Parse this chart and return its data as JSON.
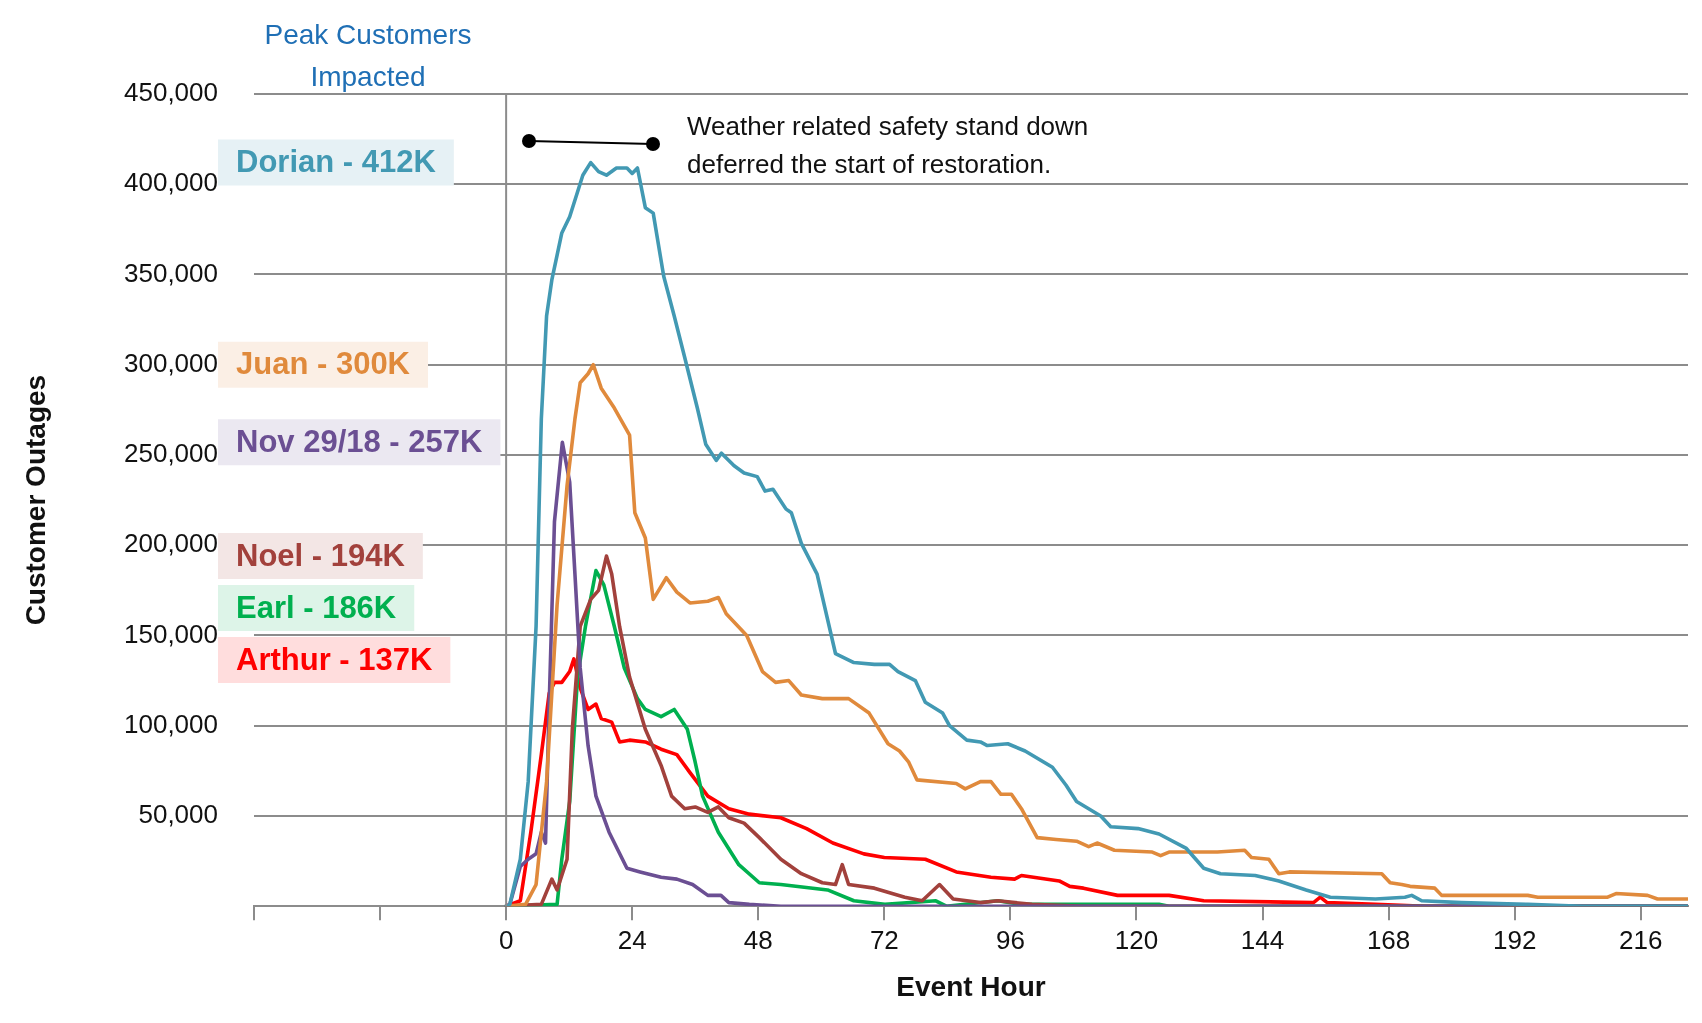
{
  "chart_data": {
    "type": "line",
    "xlabel": "Event Hour",
    "ylabel": "Customer Outages",
    "legend_title": "Peak Customers Impacted",
    "legend": "left",
    "grid": "y",
    "xlim": [
      -48,
      225
    ],
    "xticks": [
      {
        "value": -48,
        "label": null
      },
      {
        "value": -24,
        "label": null
      },
      0,
      24,
      48,
      72,
      96,
      120,
      144,
      168,
      192,
      216
    ],
    "ylim": [
      0,
      450000
    ],
    "yticks": [
      {
        "value": 0,
        "label": null
      },
      {
        "value": 50000,
        "label": "50,000"
      },
      {
        "value": 100000,
        "label": "100,000"
      },
      {
        "value": 150000,
        "label": "150,000"
      },
      {
        "value": 200000,
        "label": "200,000"
      },
      {
        "value": 250000,
        "label": "250,000"
      },
      {
        "value": 300000,
        "label": "300,000"
      },
      {
        "value": 350000,
        "label": "350,000"
      },
      {
        "value": 400000,
        "label": "400,000"
      },
      {
        "value": 450000,
        "label": "450,000"
      }
    ],
    "ref_lines": [
      {
        "axis": "x",
        "value": 0,
        "color": "#8c8c8c"
      }
    ],
    "annotations": [
      "Weather related safety stand down deferred the start of restoration."
    ],
    "series": [
      {
        "name": "Dorian - 412K",
        "color": "#4299b3",
        "x": [
          0,
          0.7,
          2.7,
          4.2,
          5.7,
          6.7,
          7.7,
          8.7,
          10.6,
          12.1,
          14.6,
          16.1,
          17.6,
          19.1,
          21,
          23,
          24,
          25,
          26.5,
          28,
          30,
          32,
          34,
          36.4,
          38,
          40,
          41,
          43.4,
          45.3,
          47.8,
          49.3,
          50.8,
          53.3,
          54.3,
          56.2,
          59.2,
          62.7,
          66.2,
          70.1,
          73,
          74.6,
          77.9,
          79.8,
          83.1,
          84.4,
          87.7,
          90.3,
          91.6,
          95.5,
          98.8,
          104,
          106.6,
          108.6,
          113.2,
          115.1,
          120.3,
          124.3,
          129.5,
          132.8,
          136,
          142.6,
          147.1,
          152.3,
          156.9,
          165.5,
          171.1,
          172.4,
          174.3,
          181.9,
          194.5,
          205,
          225
        ],
        "values": [
          0,
          1000,
          26000,
          69000,
          155000,
          270000,
          327000,
          347000,
          373000,
          382000,
          405000,
          412000,
          407000,
          405000,
          409000,
          409000,
          406000,
          409000,
          387000,
          384000,
          349000,
          327000,
          304000,
          276000,
          256000,
          247000,
          251000,
          244000,
          240000,
          238000,
          230000,
          231000,
          220000,
          218000,
          201000,
          184000,
          140000,
          135000,
          134000,
          134000,
          130000,
          125000,
          113000,
          107000,
          100000,
          92000,
          91000,
          89000,
          90000,
          86000,
          77000,
          67000,
          58000,
          50000,
          44000,
          43000,
          40000,
          32000,
          21000,
          18000,
          17000,
          14000,
          9000,
          5000,
          4000,
          5000,
          6000,
          3000,
          2000,
          1000,
          0,
          0
        ]
      },
      {
        "name": "Juan - 300K",
        "color": "#e08a3c",
        "x": [
          0,
          3.7,
          5.7,
          7.7,
          9.7,
          11.6,
          13.1,
          14.1,
          15.6,
          16.6,
          18.1,
          20.6,
          23.5,
          24.5,
          26.5,
          28,
          30.5,
          32.5,
          35,
          38.4,
          40.4,
          41.9,
          45.8,
          48.8,
          51.3,
          53.8,
          56.2,
          60.2,
          65.2,
          69.1,
          72.7,
          74.9,
          76.6,
          78.2,
          85.7,
          87.4,
          90.3,
          92.3,
          94.2,
          96.2,
          98.1,
          101.1,
          104.7,
          108.6,
          110.9,
          112.5,
          115.8,
          123,
          124.6,
          126.2,
          135.4,
          140.6,
          141.9,
          145.2,
          147.1,
          149.1,
          166.7,
          168.3,
          170.5,
          172.1,
          176.8,
          178.1,
          194.5,
          196.4,
          209.7,
          211.3,
          217.3,
          219.2,
          225
        ],
        "values": [
          0,
          1000,
          12000,
          69000,
          167000,
          233000,
          270000,
          290000,
          295000,
          300000,
          287000,
          276000,
          261000,
          218000,
          204000,
          170000,
          182000,
          174000,
          168000,
          169000,
          171000,
          162000,
          150000,
          130000,
          124000,
          125000,
          117000,
          115000,
          115000,
          107000,
          90000,
          86000,
          80000,
          70000,
          68000,
          65000,
          69000,
          69000,
          62000,
          62000,
          54000,
          38000,
          37000,
          36000,
          33000,
          35000,
          31000,
          30000,
          28000,
          30000,
          30000,
          31000,
          27000,
          26000,
          18000,
          19000,
          18000,
          13000,
          12000,
          11000,
          10000,
          6000,
          6000,
          5000,
          5000,
          7000,
          6000,
          4000,
          4000
        ]
      },
      {
        "name": "Nov 29/18 - 257K",
        "color": "#6b4f93",
        "x": [
          0,
          0.7,
          2.7,
          4.2,
          5.7,
          6.7,
          7.5,
          8.2,
          9.2,
          10.7,
          12.1,
          13.1,
          14.1,
          15.6,
          17.1,
          19.6,
          23,
          25.5,
          29.5,
          32.5,
          35.5,
          38.4,
          40.9,
          42.4,
          46.3,
          52.3,
          225
        ],
        "values": [
          0,
          1000,
          22000,
          26000,
          29000,
          41000,
          35000,
          112000,
          213000,
          257000,
          235000,
          184000,
          132000,
          89000,
          61000,
          41000,
          21000,
          19000,
          16000,
          15000,
          12000,
          6000,
          6000,
          2000,
          1000,
          0,
          0
        ]
      },
      {
        "name": "Noel - 194K",
        "color": "#a2413c",
        "x": [
          0,
          6.7,
          8.7,
          9.7,
          11.6,
          12.6,
          14.1,
          16.1,
          17.6,
          19.1,
          20.1,
          21.6,
          23.5,
          26.5,
          29.5,
          31.5,
          34,
          36,
          38.4,
          40.4,
          42.4,
          45.3,
          48.2,
          52.3,
          56.2,
          60.2,
          62.7,
          64,
          65.2,
          70.1,
          75.9,
          79.2,
          82.5,
          85.1,
          90.3,
          93.6,
          100.1,
          110,
          225
        ],
        "values": [
          0,
          1000,
          15000,
          9000,
          26000,
          98000,
          155000,
          170000,
          175000,
          194000,
          184000,
          155000,
          127000,
          98000,
          78000,
          61000,
          54000,
          55000,
          52000,
          55000,
          49000,
          46000,
          38000,
          26000,
          18000,
          13000,
          12000,
          23000,
          12000,
          10000,
          5000,
          3000,
          12000,
          4000,
          2000,
          3000,
          1000,
          0,
          0
        ]
      },
      {
        "name": "Earl - 186K",
        "color": "#00b04f",
        "x": [
          0,
          9.7,
          10.6,
          12.1,
          13.6,
          15.1,
          17.1,
          18.6,
          20.6,
          22.5,
          25,
          26.5,
          29.5,
          32,
          34.5,
          35.9,
          37.4,
          40.4,
          44.3,
          48.2,
          52.3,
          61.2,
          66.2,
          72.1,
          81.8,
          83.8,
          93.6,
          98.1,
          116.4,
          124.3,
          126.2,
          225
        ],
        "values": [
          0,
          1000,
          26000,
          58000,
          127000,
          155000,
          186000,
          178000,
          155000,
          132000,
          115000,
          109000,
          105000,
          109000,
          98000,
          81000,
          61000,
          41000,
          23000,
          13000,
          12000,
          9000,
          3000,
          1000,
          3000,
          0,
          3000,
          1000,
          1000,
          1000,
          0,
          0
        ]
      },
      {
        "name": "Arthur - 137K",
        "color": "#ff0000",
        "x": [
          0,
          2.7,
          4.7,
          6.7,
          8.2,
          9.2,
          10.6,
          12.1,
          12.9,
          14.1,
          15.6,
          17.1,
          18.1,
          20.1,
          21.6,
          23.5,
          26.5,
          29.5,
          32.5,
          35,
          38.4,
          42.4,
          46.3,
          52.3,
          57.2,
          62.2,
          68.1,
          72,
          79.8,
          85.7,
          92.3,
          96.8,
          98.1,
          105.3,
          107.3,
          109.9,
          116.4,
          126.2,
          132.8,
          153.7,
          155,
          156.3,
          165.5,
          175,
          225
        ],
        "values": [
          0,
          3000,
          41000,
          84000,
          118000,
          124000,
          124000,
          130000,
          137000,
          121000,
          109000,
          112000,
          104000,
          102000,
          91000,
          92000,
          91000,
          87000,
          84000,
          74000,
          61000,
          54000,
          51000,
          49000,
          43000,
          35000,
          29000,
          27000,
          26000,
          19000,
          16000,
          15000,
          17000,
          14000,
          11000,
          10000,
          6000,
          6000,
          3000,
          2000,
          5000,
          2000,
          1000,
          0,
          0
        ]
      }
    ]
  }
}
